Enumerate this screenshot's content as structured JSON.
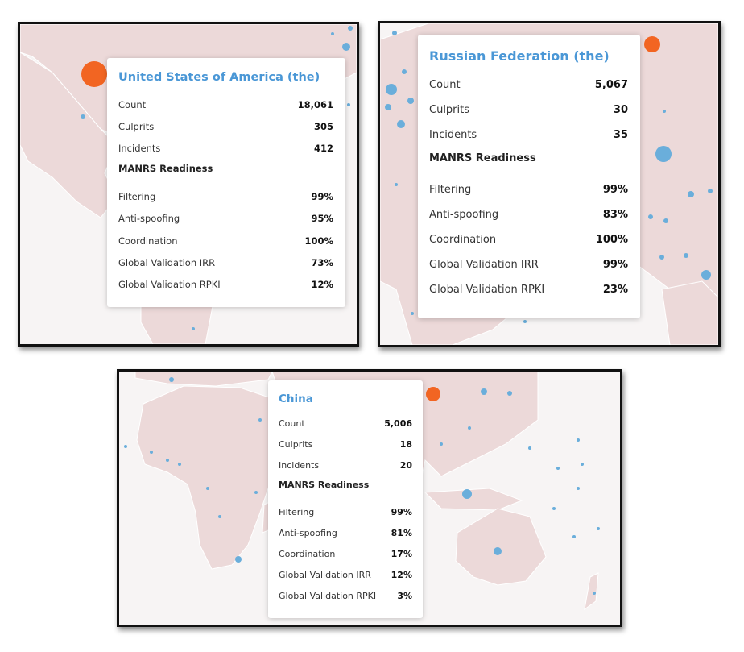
{
  "colors": {
    "accent": "#4a97d6",
    "dot": "#6aaedb",
    "hotspot": "#f26522",
    "land": "#ecd9d9"
  },
  "panels": [
    {
      "country": "United States of America (the)",
      "stats": [
        {
          "label": "Count",
          "value": "18,061"
        },
        {
          "label": "Culprits",
          "value": "305"
        },
        {
          "label": "Incidents",
          "value": "412"
        }
      ],
      "section_title": "MANRS Readiness",
      "readiness": [
        {
          "label": "Filtering",
          "value": "99%"
        },
        {
          "label": "Anti-spoofing",
          "value": "95%"
        },
        {
          "label": "Coordination",
          "value": "100%"
        },
        {
          "label": "Global Validation IRR",
          "value": "73%"
        },
        {
          "label": "Global Validation RPKI",
          "value": "12%"
        }
      ]
    },
    {
      "country": "Russian Federation (the)",
      "stats": [
        {
          "label": "Count",
          "value": "5,067"
        },
        {
          "label": "Culprits",
          "value": "30"
        },
        {
          "label": "Incidents",
          "value": "35"
        }
      ],
      "section_title": "MANRS Readiness",
      "readiness": [
        {
          "label": "Filtering",
          "value": "99%"
        },
        {
          "label": "Anti-spoofing",
          "value": "83%"
        },
        {
          "label": "Coordination",
          "value": "100%"
        },
        {
          "label": "Global Validation IRR",
          "value": "99%"
        },
        {
          "label": "Global Validation RPKI",
          "value": "23%"
        }
      ]
    },
    {
      "country": "China",
      "stats": [
        {
          "label": "Count",
          "value": "5,006"
        },
        {
          "label": "Culprits",
          "value": "18"
        },
        {
          "label": "Incidents",
          "value": "20"
        }
      ],
      "section_title": "MANRS Readiness",
      "readiness": [
        {
          "label": "Filtering",
          "value": "99%"
        },
        {
          "label": "Anti-spoofing",
          "value": "81%"
        },
        {
          "label": "Coordination",
          "value": "17%"
        },
        {
          "label": "Global Validation IRR",
          "value": "12%"
        },
        {
          "label": "Global Validation RPKI",
          "value": "3%"
        }
      ]
    }
  ]
}
